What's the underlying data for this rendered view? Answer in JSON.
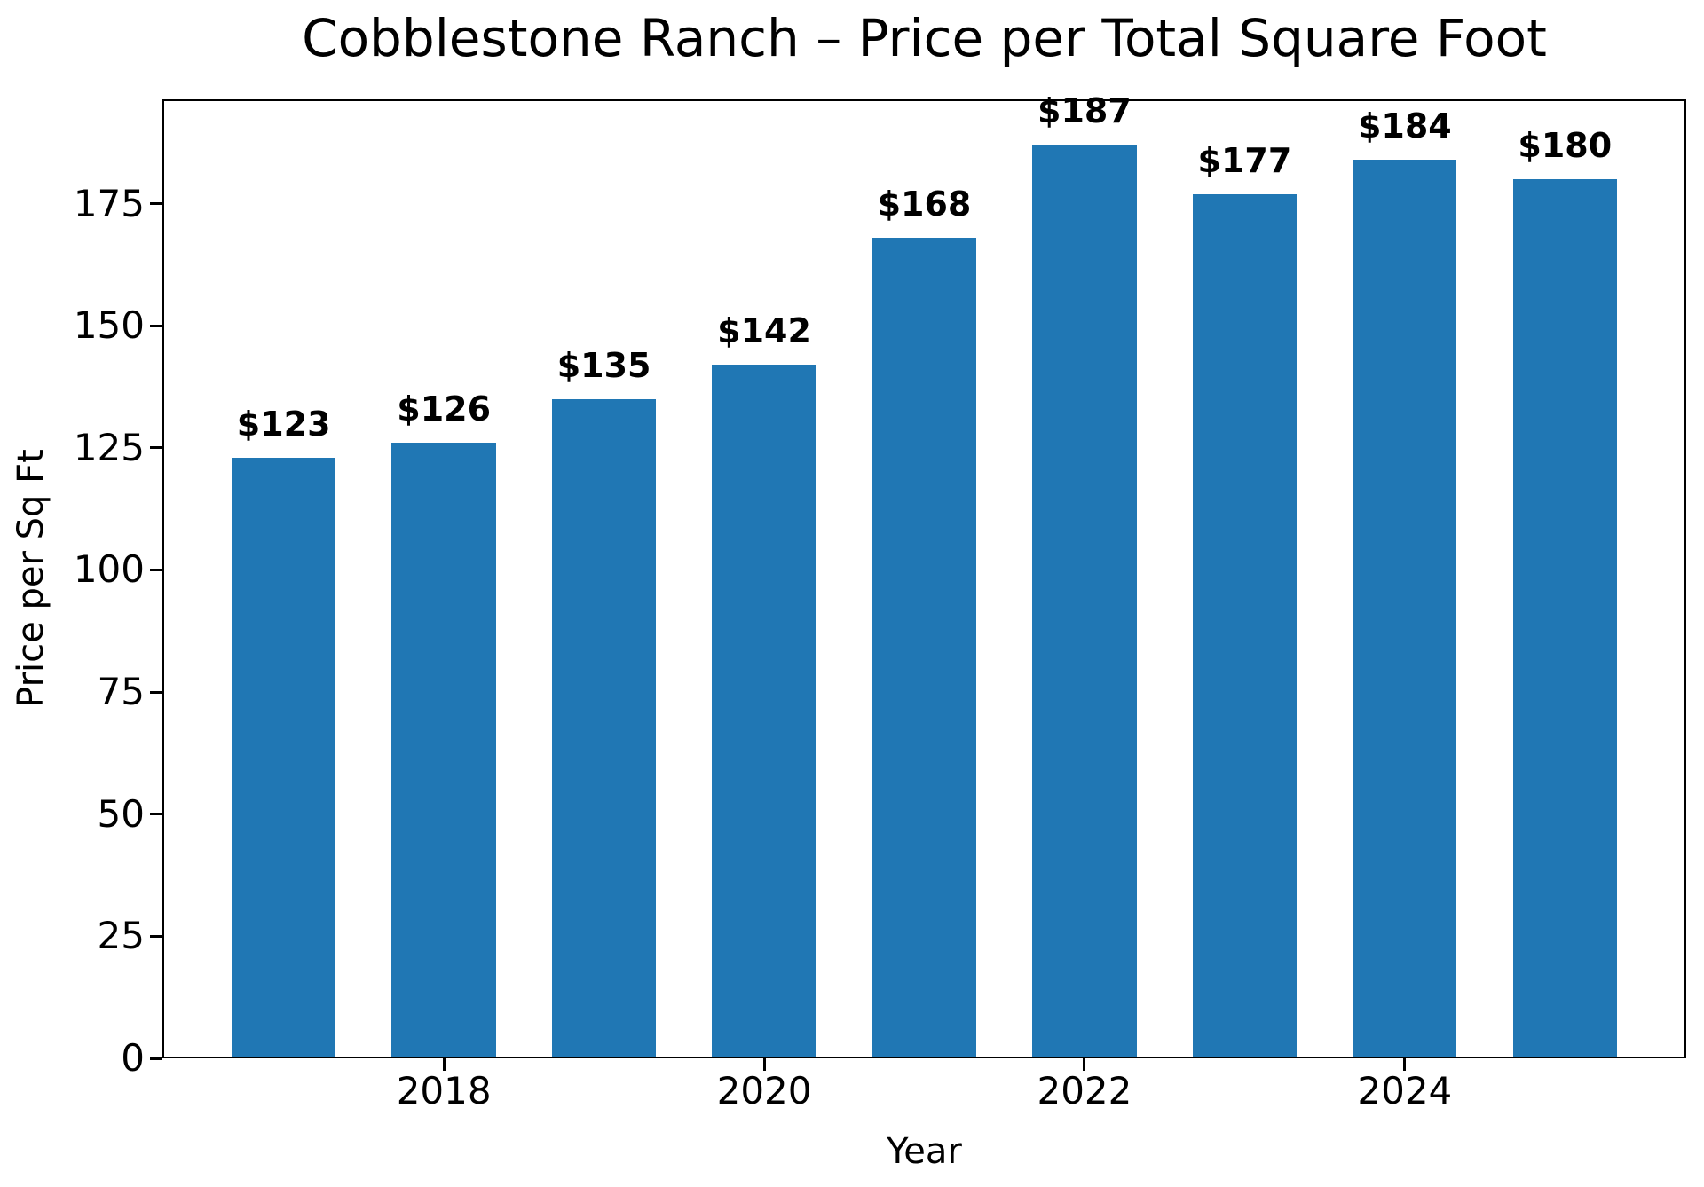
{
  "chart_data": {
    "type": "bar",
    "title": "Cobblestone Ranch – Price per Total Square Foot",
    "xlabel": "Year",
    "ylabel": "Price per Sq Ft",
    "categories": [
      2017,
      2018,
      2019,
      2020,
      2021,
      2022,
      2023,
      2024,
      2025
    ],
    "values": [
      123,
      126,
      135,
      142,
      168,
      187,
      177,
      184,
      180
    ],
    "bar_labels": [
      "$123",
      "$126",
      "$135",
      "$142",
      "$168",
      "$187",
      "$177",
      "$184",
      "$180"
    ],
    "bar_color": "#2077b4",
    "bar_width": 0.65,
    "xlim": [
      2016.2425,
      2025.7575
    ],
    "ylim": [
      0,
      196.35
    ],
    "xticks": [
      2018,
      2020,
      2022,
      2024
    ],
    "yticks": [
      0,
      25,
      50,
      75,
      100,
      125,
      150,
      175
    ],
    "grid": false,
    "legend": null,
    "text_color": "#000000",
    "spine_color": "#000000",
    "background_color": "#ffffff"
  }
}
